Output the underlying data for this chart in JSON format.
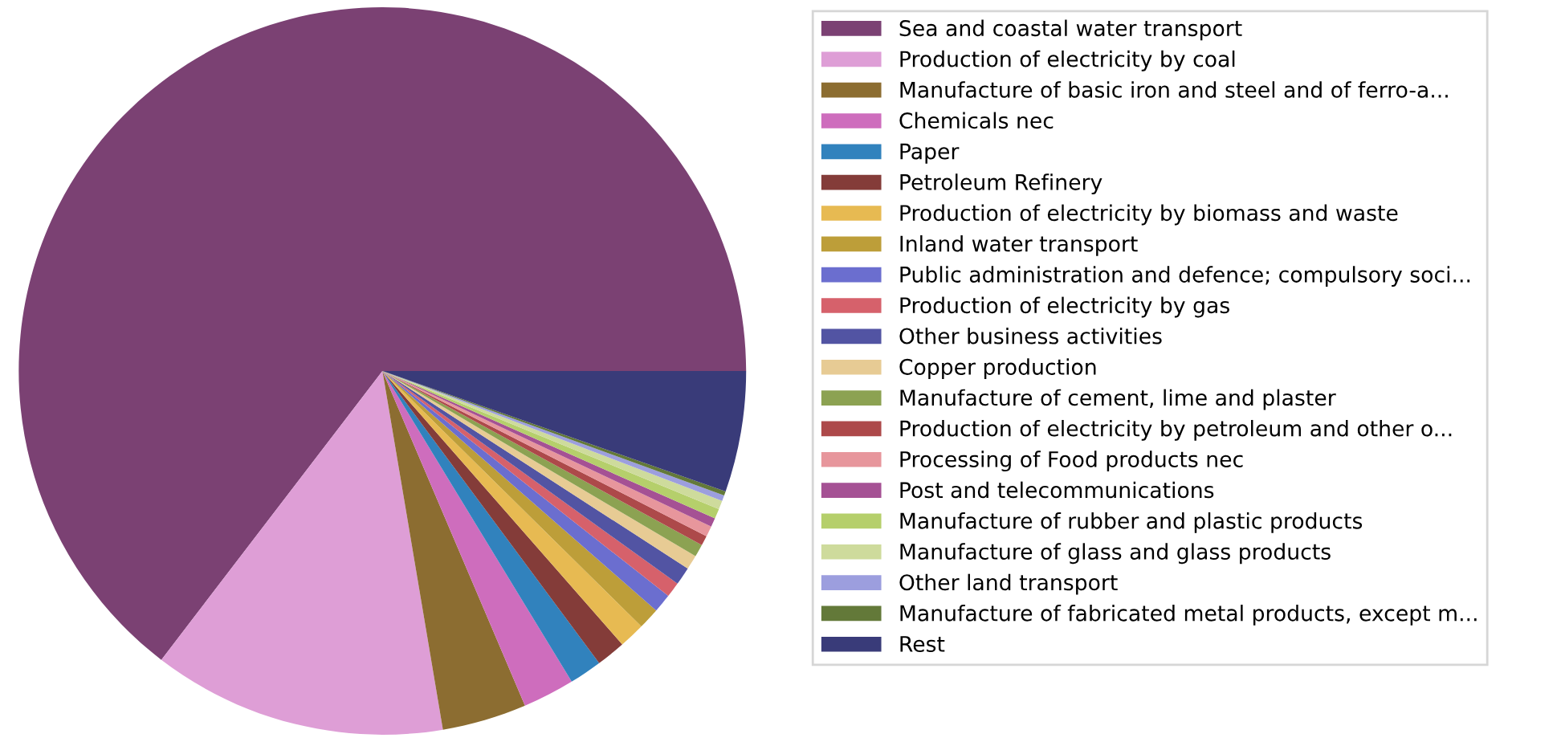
{
  "chart_data": {
    "type": "pie",
    "categories": [
      "Sea and coastal water transport",
      "Production of electricity by coal",
      "Manufacture of basic iron and steel and of ferro-a...",
      "Chemicals nec",
      "Paper",
      "Petroleum Refinery",
      "Production of electricity by biomass and waste",
      "Inland water transport",
      "Public administration and defence; compulsory soci...",
      "Production of electricity by gas",
      "Other business activities",
      "Copper production",
      "Manufacture of cement, lime and plaster",
      "Production of electricity by petroleum and other o...",
      "Processing of Food products nec",
      "Post and telecommunications",
      "Manufacture of rubber and plastic products",
      "Manufacture of glass and glass products",
      "Other land transport",
      "Manufacture of fabricated metal products, except m...",
      "Rest"
    ],
    "values": [
      64.6,
      13.06,
      3.75,
      2.3,
      1.45,
      1.3,
      1.15,
      0.95,
      0.83,
      0.67,
      0.8,
      0.64,
      0.56,
      0.44,
      0.47,
      0.39,
      0.44,
      0.39,
      0.25,
      0.19,
      5.37
    ],
    "colors": [
      "#7b4173",
      "#de9ed6",
      "#8c6d31",
      "#ce6dbd",
      "#3182bd",
      "#843c39",
      "#e7ba52",
      "#bd9e39",
      "#6b6ecf",
      "#d6616b",
      "#5254a3",
      "#e7cb94",
      "#8ca252",
      "#ad494a",
      "#e7969c",
      "#a55194",
      "#b5cf6b",
      "#cedb9c",
      "#9c9ede",
      "#637939",
      "#393b79"
    ],
    "legend": "right"
  }
}
